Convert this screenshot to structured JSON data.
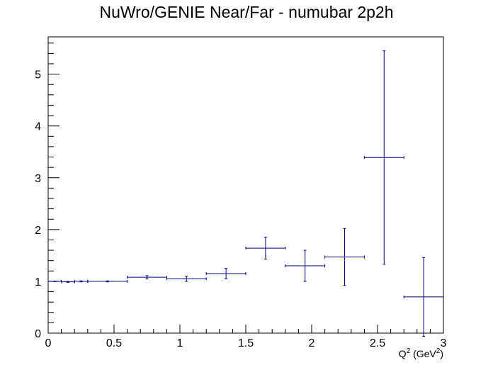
{
  "chart_data": {
    "type": "scatter",
    "style": "histogram-points-with-error-bars",
    "title": "NuWro/GENIE Near/Far - numubar 2p2h",
    "xlabel": "Q",
    "xlabel_sup": "2",
    "xlabel_unit_open": " (GeV",
    "xlabel_unit_sup": "2",
    "xlabel_unit_close": ")",
    "ylabel": "",
    "xlim": [
      0,
      3
    ],
    "ylim": [
      0,
      5.72
    ],
    "x_ticks": [
      {
        "value": 0,
        "label": "0"
      },
      {
        "value": 0.5,
        "label": "0.5"
      },
      {
        "value": 1,
        "label": "1"
      },
      {
        "value": 1.5,
        "label": "1.5"
      },
      {
        "value": 2,
        "label": "2"
      },
      {
        "value": 2.5,
        "label": "2.5"
      },
      {
        "value": 3,
        "label": "3"
      }
    ],
    "y_ticks": [
      {
        "value": 0,
        "label": "0"
      },
      {
        "value": 1,
        "label": "1"
      },
      {
        "value": 2,
        "label": "2"
      },
      {
        "value": 3,
        "label": "3"
      },
      {
        "value": 4,
        "label": "4"
      },
      {
        "value": 5,
        "label": "5"
      }
    ],
    "grid": false,
    "color": "#000080",
    "points": [
      {
        "x_low": 0.0,
        "x_high": 0.1,
        "y": 1.0,
        "y_err": 0.005
      },
      {
        "x_low": 0.1,
        "x_high": 0.2,
        "y": 0.99,
        "y_err": 0.01
      },
      {
        "x_low": 0.2,
        "x_high": 0.3,
        "y": 1.0,
        "y_err": 0.01
      },
      {
        "x_low": 0.3,
        "x_high": 0.6,
        "y": 1.0,
        "y_err": 0.01
      },
      {
        "x_low": 0.6,
        "x_high": 0.9,
        "y": 1.08,
        "y_err": 0.03
      },
      {
        "x_low": 0.9,
        "x_high": 1.2,
        "y": 1.05,
        "y_err": 0.05
      },
      {
        "x_low": 1.2,
        "x_high": 1.5,
        "y": 1.15,
        "y_err": 0.1
      },
      {
        "x_low": 1.5,
        "x_high": 1.8,
        "y": 1.64,
        "y_err": 0.21
      },
      {
        "x_low": 1.8,
        "x_high": 2.1,
        "y": 1.3,
        "y_err": 0.3
      },
      {
        "x_low": 2.1,
        "x_high": 2.4,
        "y": 1.47,
        "y_err": 0.55
      },
      {
        "x_low": 2.4,
        "x_high": 2.7,
        "y": 3.39,
        "y_err": 2.06
      },
      {
        "x_low": 2.7,
        "x_high": 3.0,
        "y": 0.7,
        "y_err": 0.76
      }
    ]
  }
}
